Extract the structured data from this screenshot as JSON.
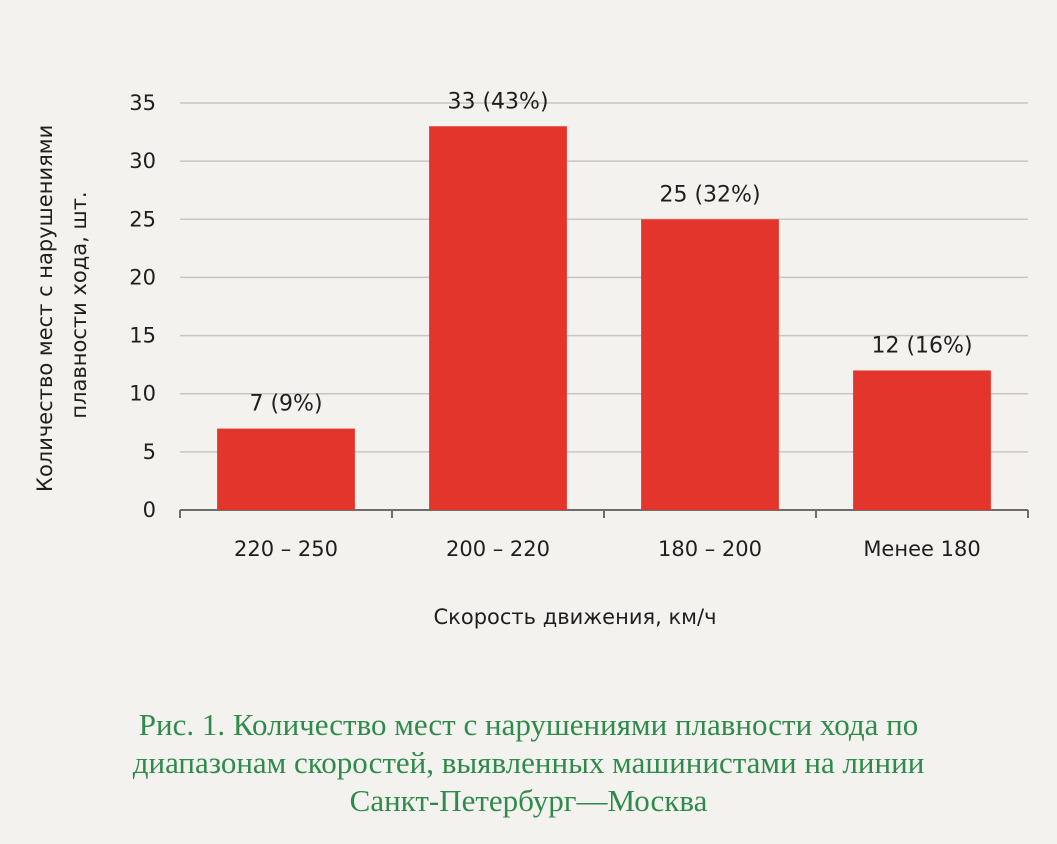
{
  "chart_data": {
    "type": "bar",
    "categories": [
      "220 – 250",
      "200 – 220",
      "180 – 200",
      "Менее 180"
    ],
    "values": [
      7,
      33,
      25,
      12
    ],
    "data_labels": [
      "7 (9%)",
      "33 (43%)",
      "25 (32%)",
      "12 (16%)"
    ],
    "xlabel": "Скорость движения, км/ч",
    "ylabel_lines": [
      "Количество мест с нарушениями",
      "плавности хода, шт."
    ],
    "ylim": [
      0,
      35
    ],
    "yticks": [
      0,
      5,
      10,
      15,
      20,
      25,
      30,
      35
    ],
    "grid": true,
    "bar_color": "#e4352c",
    "grid_color": "#c8c6c3"
  },
  "caption_lines": [
    "Рис. 1. Количество мест с нарушениями плавности хода по",
    "диапазонам скоростей, выявленных машинистами на линии",
    "Санкт-Петербург—Москва"
  ],
  "caption_color": "#2f8a4c"
}
